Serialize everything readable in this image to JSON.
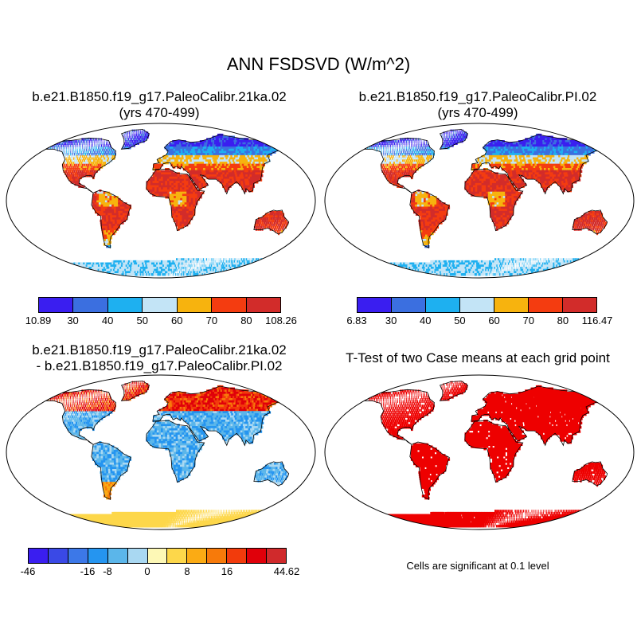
{
  "title": "ANN FSDSVD (W/m^2)",
  "colors": {
    "ocean": "#ffffff",
    "outline": "#000000",
    "significant": "#ee0000"
  },
  "panels": {
    "top_left": {
      "title_line1": "b.e21.B1850.f19_g17.PaleoCalibr.21ka.02",
      "title_line2": "(yrs 470-499)",
      "colorbar": {
        "colors": [
          "#3a1ef0",
          "#3b6fe0",
          "#1eb0f0",
          "#c3e4f6",
          "#f7b30e",
          "#f43c10",
          "#d22c2a"
        ],
        "labels": [
          "10.89",
          "30",
          "40",
          "50",
          "60",
          "70",
          "80",
          "108.26"
        ]
      }
    },
    "top_right": {
      "title_line1": "b.e21.B1850.f19_g17.PaleoCalibr.PI.02",
      "title_line2": "(yrs 470-499)",
      "colorbar": {
        "colors": [
          "#3a1ef0",
          "#3b6fe0",
          "#1eb0f0",
          "#c3e4f6",
          "#f7b30e",
          "#f43c10",
          "#d22c2a"
        ],
        "labels": [
          "6.83",
          "30",
          "40",
          "50",
          "60",
          "70",
          "80",
          "116.47"
        ]
      }
    },
    "bottom_left": {
      "title_line1": "b.e21.B1850.f19_g17.PaleoCalibr.21ka.02",
      "title_line2": "- b.e21.B1850.f19_g17.PaleoCalibr.PI.02",
      "colorbar": {
        "colors": [
          "#3a1ef0",
          "#3a49e6",
          "#3c78e8",
          "#2595f0",
          "#5bb6ea",
          "#a9d8f2",
          "#fdf8b6",
          "#fdd74a",
          "#fbab14",
          "#f77a0a",
          "#f23b0c",
          "#e0000a",
          "#d02a2c"
        ],
        "labels": [
          "-46",
          "-16",
          "-8",
          "0",
          "8",
          "16",
          "44.62"
        ]
      }
    },
    "bottom_right": {
      "title_line1": "T-Test of two Case means at each grid point",
      "note": "Cells are significant at 0.1 level"
    }
  }
}
